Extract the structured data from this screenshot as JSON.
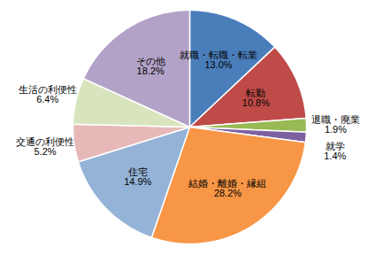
{
  "chart_data": {
    "type": "pie",
    "categories": [
      "就職・転職・転業",
      "転勤",
      "退職・廃業",
      "就学",
      "結婚・離婚・縁組",
      "住宅",
      "交通の利便性",
      "生活の利便性",
      "その他"
    ],
    "values": [
      13.0,
      10.8,
      1.9,
      1.4,
      28.2,
      14.9,
      5.2,
      6.4,
      18.2
    ],
    "value_labels": [
      "13.0%",
      "10.8%",
      "1.9%",
      "1.4%",
      "28.2%",
      "14.9%",
      "5.2%",
      "6.4%",
      "18.2%"
    ],
    "colors": [
      "#4a7ebb",
      "#be4b48",
      "#98b954",
      "#7d60a0",
      "#f79646",
      "#95b3d7",
      "#e6b9b8",
      "#d7e4bd",
      "#b3a2c7"
    ],
    "data_labels": true
  }
}
